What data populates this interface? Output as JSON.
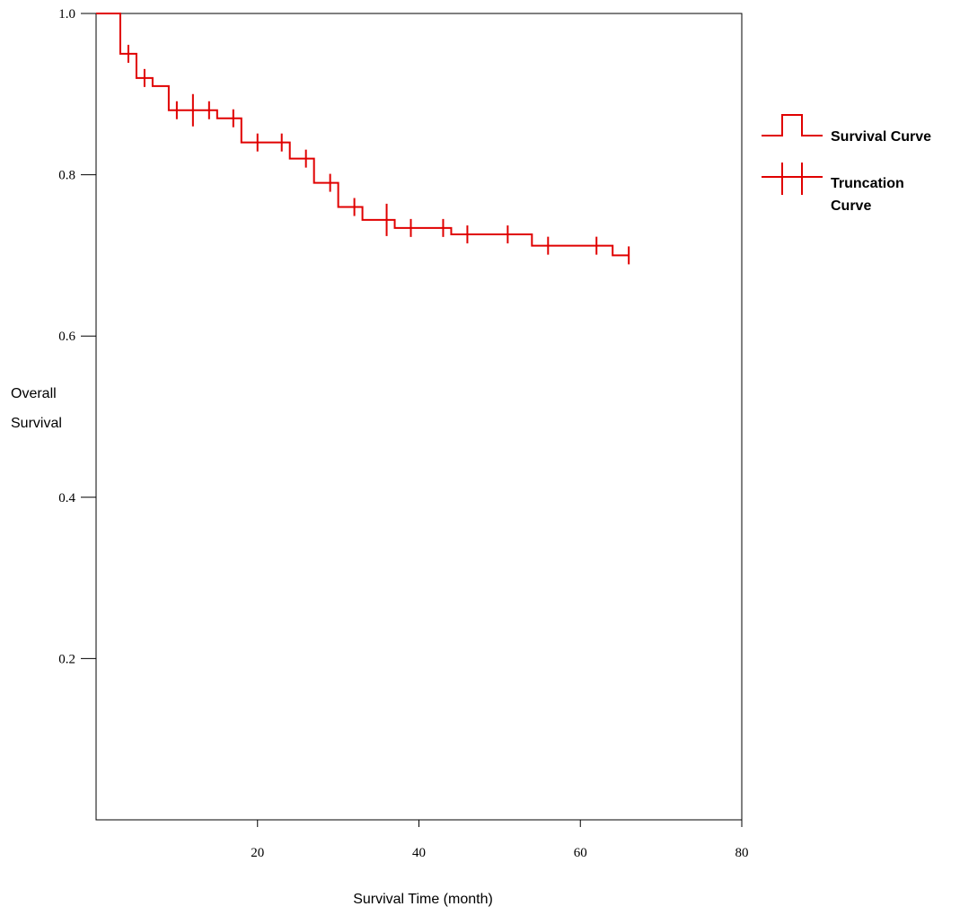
{
  "chart_data": {
    "type": "line",
    "title": "",
    "xlabel": "Survival Time (month)",
    "ylabel": [
      "Overall",
      "Survival"
    ],
    "xlim": [
      0,
      80
    ],
    "ylim": [
      0,
      1.0
    ],
    "xticks": [
      20,
      40,
      60,
      80
    ],
    "yticks": [
      0.2,
      0.4,
      0.6,
      0.8,
      1.0
    ],
    "ytick_labels": [
      "0.2",
      "0.4",
      "0.6",
      "0.8",
      "1.0"
    ],
    "xtick_labels": [
      "20",
      "40",
      "60",
      "80"
    ],
    "grid": false,
    "legend_position": "right",
    "colors": {
      "curve": "#e00000",
      "axis": "#000000"
    },
    "series": [
      {
        "name": "Survival Curve",
        "style": "step",
        "points": [
          [
            0,
            1.0
          ],
          [
            3,
            0.95
          ],
          [
            5,
            0.92
          ],
          [
            7,
            0.91
          ],
          [
            9,
            0.88
          ],
          [
            15,
            0.87
          ],
          [
            18,
            0.84
          ],
          [
            24,
            0.82
          ],
          [
            27,
            0.79
          ],
          [
            30,
            0.76
          ],
          [
            33,
            0.744
          ],
          [
            37,
            0.734
          ],
          [
            44,
            0.726
          ],
          [
            54,
            0.712
          ],
          [
            64,
            0.7
          ],
          [
            66,
            0.7
          ]
        ]
      },
      {
        "name": "Truncation Curve",
        "style": "censor-ticks",
        "points": [
          [
            4,
            0.95
          ],
          [
            6,
            0.92
          ],
          [
            10,
            0.88
          ],
          [
            12,
            0.88
          ],
          [
            14,
            0.88
          ],
          [
            17,
            0.87
          ],
          [
            20,
            0.84
          ],
          [
            23,
            0.84
          ],
          [
            26,
            0.82
          ],
          [
            29,
            0.79
          ],
          [
            32,
            0.76
          ],
          [
            36,
            0.744
          ],
          [
            39,
            0.734
          ],
          [
            43,
            0.734
          ],
          [
            46,
            0.726
          ],
          [
            51,
            0.726
          ],
          [
            56,
            0.712
          ],
          [
            62,
            0.712
          ],
          [
            66,
            0.7
          ]
        ],
        "large_ticks": [
          12,
          36
        ]
      }
    ],
    "legend": [
      "Survival Curve",
      "Truncation Curve"
    ]
  }
}
